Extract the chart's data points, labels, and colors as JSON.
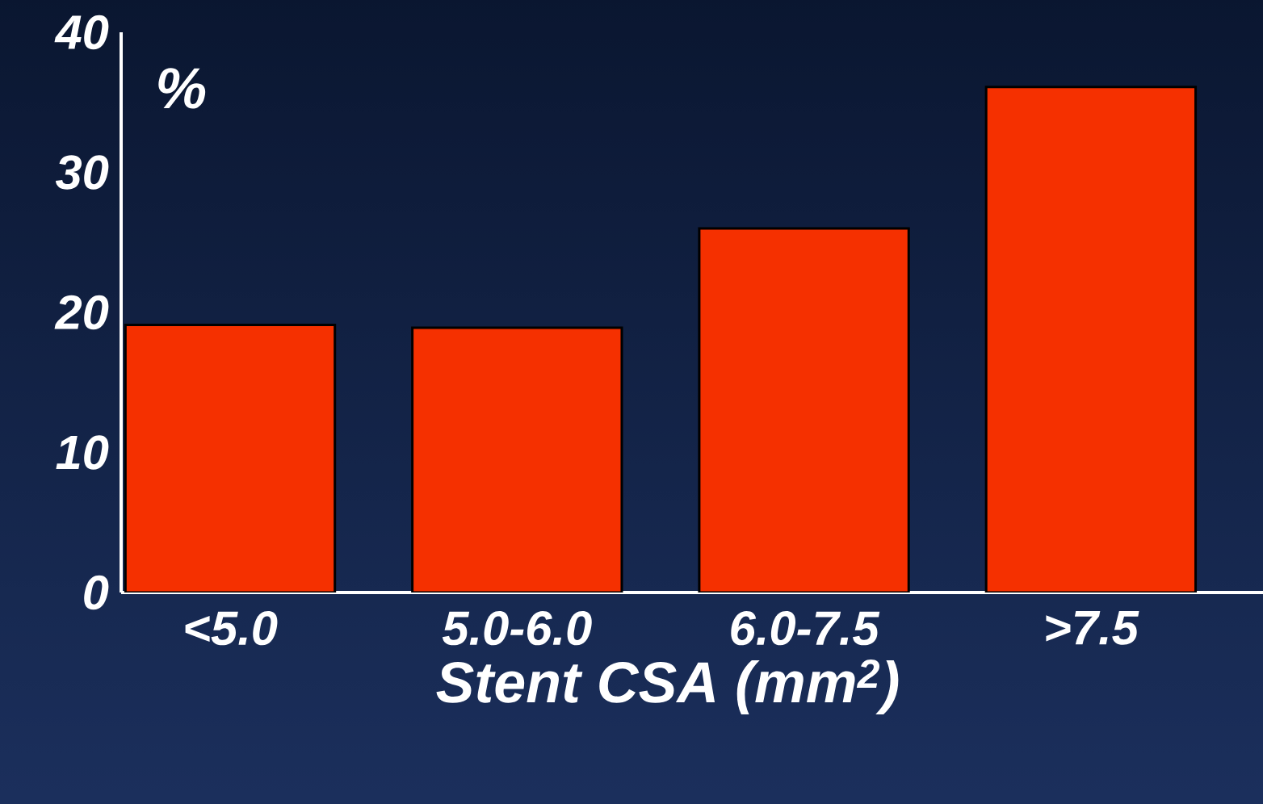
{
  "chart_data": {
    "type": "bar",
    "xlabel": "Stent CSA (mm$^{2}$)",
    "ylabel": "%",
    "categories": [
      "<5.0",
      "5.0-6.0",
      "6.0-7.5",
      ">7.5"
    ],
    "values": [
      19.1,
      18.9,
      26.0,
      36.1
    ],
    "color": "#f53000",
    "ylim": [
      0,
      40
    ],
    "yticks": [
      0,
      10,
      20,
      30,
      40
    ]
  }
}
